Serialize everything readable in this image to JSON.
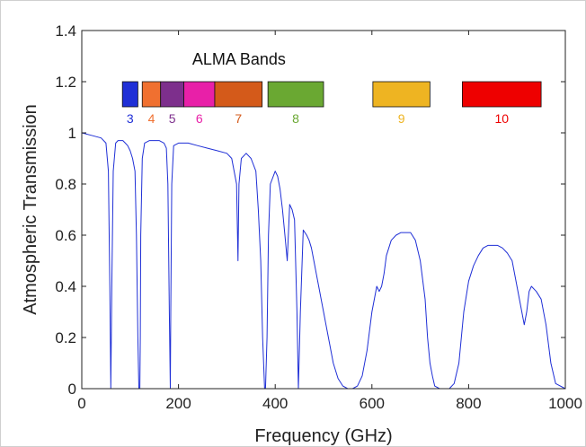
{
  "chart_data": {
    "type": "line",
    "title": "ALMA Bands",
    "xlabel": "Frequency (GHz)",
    "ylabel": "Atmospheric Transmission",
    "xlim": [
      0,
      1000
    ],
    "ylim": [
      0,
      1.4
    ],
    "xticks": [
      "0",
      "200",
      "400",
      "600",
      "800",
      "1000"
    ],
    "yticks": [
      "0",
      "0.2",
      "0.4",
      "0.6",
      "0.8",
      "1",
      "1.2",
      "1.4"
    ],
    "grid": false,
    "line_color": "#1f2fd6",
    "bands": [
      {
        "label": "3",
        "start": 84,
        "end": 116,
        "color": "#1f2fd6"
      },
      {
        "label": "4",
        "start": 125,
        "end": 163,
        "color": "#f07030"
      },
      {
        "label": "5",
        "start": 163,
        "end": 211,
        "color": "#7d2f8c"
      },
      {
        "label": "6",
        "start": 211,
        "end": 275,
        "color": "#e820a8"
      },
      {
        "label": "7",
        "start": 275,
        "end": 373,
        "color": "#d45a1a"
      },
      {
        "label": "8",
        "start": 385,
        "end": 500,
        "color": "#6aa832"
      },
      {
        "label": "9",
        "start": 602,
        "end": 720,
        "color": "#eeb422"
      },
      {
        "label": "10",
        "start": 787,
        "end": 950,
        "color": "#ee0000"
      }
    ],
    "series": [
      {
        "x": [
          0,
          20,
          40,
          50,
          55,
          58,
          60,
          62,
          65,
          70,
          75,
          80,
          85,
          90,
          95,
          100,
          105,
          110,
          113,
          116,
          118,
          119,
          120,
          121,
          122,
          125,
          130,
          140,
          150,
          160,
          170,
          175,
          178,
          181,
          183,
          184,
          186,
          190,
          200,
          220,
          240,
          260,
          280,
          300,
          310,
          320,
          323,
          325,
          330,
          340,
          350,
          360,
          365,
          370,
          374,
          378,
          380,
          383,
          386,
          390,
          400,
          405,
          410,
          415,
          420,
          425,
          430,
          435,
          440,
          445,
          448,
          452,
          458,
          465,
          470,
          475,
          480,
          485,
          490,
          495,
          500,
          505,
          510,
          520,
          530,
          540,
          550,
          560,
          570,
          580,
          590,
          600,
          610,
          615,
          620,
          625,
          630,
          640,
          650,
          660,
          670,
          680,
          690,
          700,
          710,
          715,
          720,
          725,
          730,
          740,
          750,
          760,
          770,
          780,
          790,
          800,
          810,
          820,
          830,
          840,
          850,
          860,
          870,
          880,
          890,
          900,
          910,
          915,
          920,
          925,
          930,
          940,
          950,
          960,
          970,
          980,
          1000
        ],
        "y": [
          1.0,
          0.99,
          0.98,
          0.96,
          0.85,
          0.4,
          0.0,
          0.4,
          0.85,
          0.96,
          0.97,
          0.97,
          0.97,
          0.96,
          0.95,
          0.93,
          0.9,
          0.85,
          0.6,
          0.2,
          0.0,
          0.0,
          0.0,
          0.2,
          0.6,
          0.9,
          0.96,
          0.97,
          0.97,
          0.97,
          0.96,
          0.94,
          0.8,
          0.3,
          0.0,
          0.3,
          0.8,
          0.95,
          0.96,
          0.96,
          0.95,
          0.94,
          0.93,
          0.92,
          0.9,
          0.8,
          0.5,
          0.8,
          0.9,
          0.92,
          0.9,
          0.85,
          0.7,
          0.5,
          0.2,
          0.0,
          0.0,
          0.2,
          0.6,
          0.8,
          0.85,
          0.83,
          0.78,
          0.7,
          0.6,
          0.5,
          0.72,
          0.7,
          0.66,
          0.3,
          0.0,
          0.3,
          0.62,
          0.6,
          0.58,
          0.55,
          0.5,
          0.45,
          0.4,
          0.35,
          0.3,
          0.25,
          0.2,
          0.1,
          0.04,
          0.01,
          0.0,
          0.0,
          0.01,
          0.05,
          0.15,
          0.3,
          0.4,
          0.38,
          0.4,
          0.45,
          0.52,
          0.58,
          0.6,
          0.61,
          0.61,
          0.61,
          0.58,
          0.5,
          0.35,
          0.2,
          0.1,
          0.05,
          0.01,
          0.0,
          0.0,
          0.0,
          0.02,
          0.1,
          0.3,
          0.42,
          0.48,
          0.52,
          0.55,
          0.56,
          0.56,
          0.56,
          0.55,
          0.53,
          0.5,
          0.4,
          0.3,
          0.25,
          0.3,
          0.38,
          0.4,
          0.38,
          0.35,
          0.25,
          0.1,
          0.02,
          0.0
        ]
      }
    ]
  }
}
